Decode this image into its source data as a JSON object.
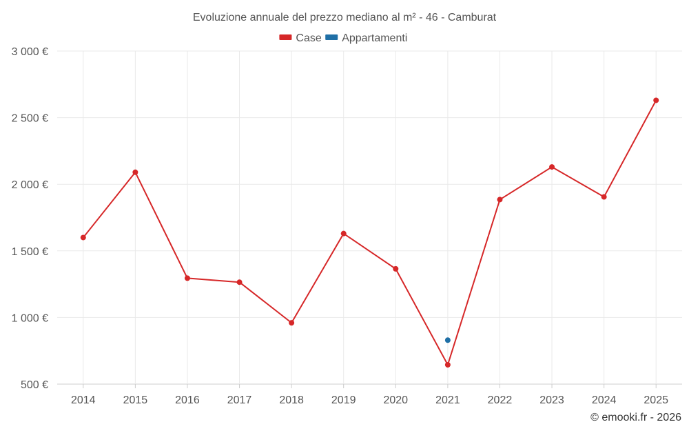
{
  "chart_data": {
    "type": "line",
    "title": "Evoluzione annuale del prezzo mediano al m² - 46 - Camburat",
    "xlabel": "",
    "ylabel": "",
    "x": [
      "2014",
      "2015",
      "2016",
      "2017",
      "2018",
      "2019",
      "2020",
      "2021",
      "2022",
      "2023",
      "2024",
      "2025"
    ],
    "yticks": [
      500,
      1000,
      1500,
      2000,
      2500,
      3000
    ],
    "ytick_labels": [
      "500 €",
      "1 000 €",
      "1 500 €",
      "2 000 €",
      "2 500 €",
      "3 000 €"
    ],
    "ylim": [
      500,
      3000
    ],
    "grid": true,
    "legend_position": "top-center",
    "series": [
      {
        "name": "Case",
        "color": "#d62728",
        "values": [
          1600,
          2090,
          1295,
          1265,
          960,
          1630,
          1365,
          645,
          1885,
          2130,
          1905,
          2630
        ]
      },
      {
        "name": "Appartamenti",
        "color": "#1f6fa6",
        "values": [
          null,
          null,
          null,
          null,
          null,
          null,
          null,
          830,
          null,
          null,
          null,
          null
        ]
      }
    ]
  },
  "credit": "© emooki.fr - 2026"
}
